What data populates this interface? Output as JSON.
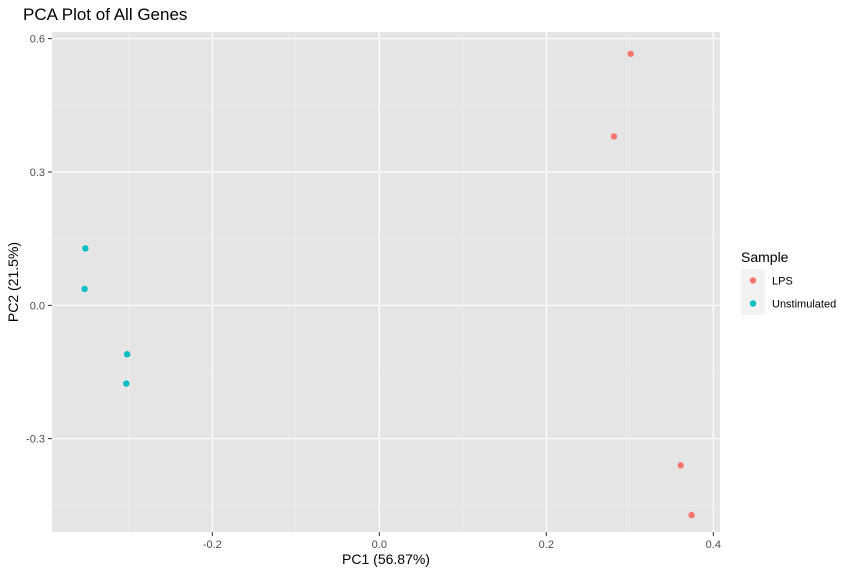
{
  "chart_data": {
    "type": "scatter",
    "title": "PCA Plot of All Genes",
    "xlabel": "PC1 (56.87%)",
    "ylabel": "PC2 (21.5%)",
    "xlim": [
      -0.392,
      0.408
    ],
    "ylim": [
      -0.51,
      0.615
    ],
    "x_ticks": [
      -0.2,
      0.0,
      0.2,
      0.4
    ],
    "x_tick_labels": [
      "-0.2",
      "0.0",
      "0.2",
      "0.4"
    ],
    "y_ticks": [
      -0.3,
      0.0,
      0.3,
      0.6
    ],
    "y_tick_labels": [
      "-0.3",
      "0.0",
      "0.3",
      "0.6"
    ],
    "grid": true,
    "background_color": "#e5e5e5",
    "legend": {
      "title": "Sample",
      "placement": "right"
    },
    "series": [
      {
        "name": "LPS",
        "color": "#f8766d",
        "points": [
          {
            "x": 0.301,
            "y": 0.566
          },
          {
            "x": 0.281,
            "y": 0.38
          },
          {
            "x": 0.361,
            "y": -0.36
          },
          {
            "x": 0.374,
            "y": -0.472
          }
        ]
      },
      {
        "name": "Unstimulated",
        "color": "#00bfc4",
        "points": [
          {
            "x": -0.352,
            "y": 0.128
          },
          {
            "x": -0.353,
            "y": 0.037
          },
          {
            "x": -0.302,
            "y": -0.11
          },
          {
            "x": -0.303,
            "y": -0.176
          }
        ]
      }
    ]
  }
}
